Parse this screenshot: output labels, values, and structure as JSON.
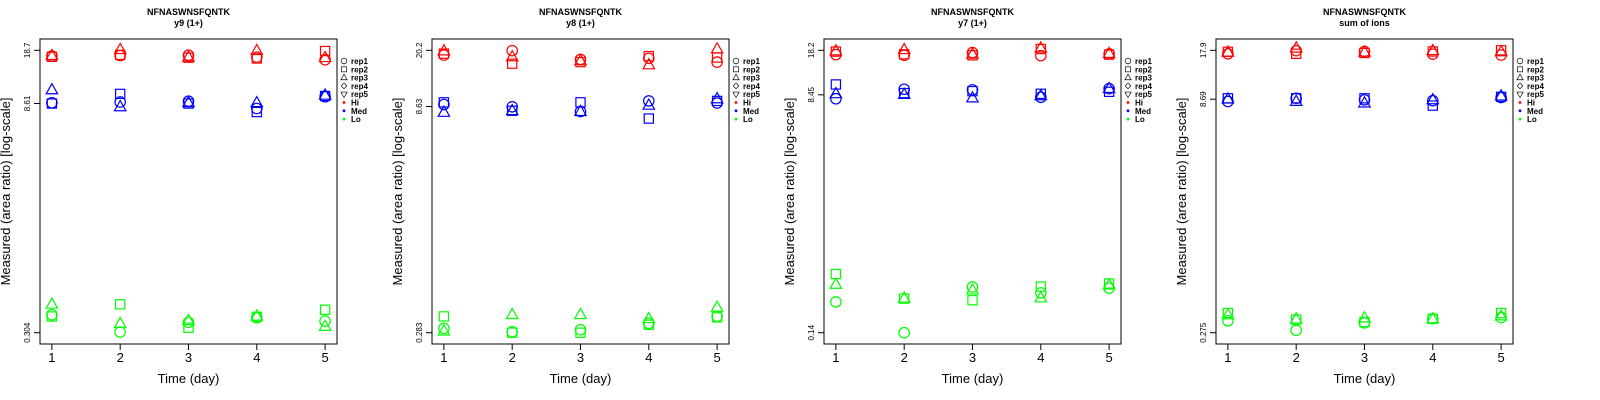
{
  "chart_data": [
    {
      "type": "scatter",
      "title": "NFNASWNSFQNTK",
      "subtitle": "y9 (1+)",
      "xlabel": "Time (day)",
      "ylabel": "Measured (area ratio) [log-scale]",
      "x_ticks": [
        "1",
        "2",
        "3",
        "4",
        "5"
      ],
      "y_tick_labels": [
        "18.7",
        "8.61",
        "0.304"
      ],
      "y_tick_values": [
        18.7,
        8.61,
        0.304
      ],
      "log_scale_y": true,
      "legend": {
        "placement": "right",
        "reps": [
          "rep1",
          "rep2",
          "rep3",
          "rep4",
          "rep5"
        ],
        "levels": [
          "Hi",
          "Med",
          "Lo"
        ]
      },
      "series": [
        {
          "level": "Hi",
          "rep": "rep1",
          "x": [
            1,
            2,
            3,
            4,
            5
          ],
          "y": [
            17.2,
            17.3,
            17.4,
            16.9,
            16.3
          ]
        },
        {
          "level": "Hi",
          "rep": "rep2",
          "x": [
            1,
            2,
            3,
            4,
            5
          ],
          "y": [
            17.0,
            17.5,
            16.8,
            16.6,
            18.5
          ]
        },
        {
          "level": "Hi",
          "rep": "rep3",
          "x": [
            1,
            2,
            3,
            4,
            5
          ],
          "y": [
            17.3,
            18.9,
            16.9,
            18.6,
            16.8
          ]
        },
        {
          "level": "Med",
          "rep": "rep1",
          "x": [
            1,
            2,
            3,
            4,
            5
          ],
          "y": [
            8.7,
            8.8,
            8.9,
            8.0,
            9.5
          ]
        },
        {
          "level": "Med",
          "rep": "rep2",
          "x": [
            1,
            2,
            3,
            4,
            5
          ],
          "y": [
            8.6,
            9.9,
            8.6,
            7.6,
            9.6
          ]
        },
        {
          "level": "Med",
          "rep": "rep3",
          "x": [
            1,
            2,
            3,
            4,
            5
          ],
          "y": [
            10.5,
            8.2,
            8.7,
            8.7,
            9.7
          ]
        },
        {
          "level": "Lo",
          "rep": "rep1",
          "x": [
            1,
            2,
            3,
            4,
            5
          ],
          "y": [
            0.395,
            0.307,
            0.354,
            0.378,
            0.36
          ]
        },
        {
          "level": "Lo",
          "rep": "rep2",
          "x": [
            1,
            2,
            3,
            4,
            5
          ],
          "y": [
            0.385,
            0.46,
            0.327,
            0.383,
            0.425
          ]
        },
        {
          "level": "Lo",
          "rep": "rep3",
          "x": [
            1,
            2,
            3,
            4,
            5
          ],
          "y": [
            0.46,
            0.347,
            0.362,
            0.387,
            0.333
          ]
        }
      ]
    },
    {
      "type": "scatter",
      "title": "NFNASWNSFQNTK",
      "subtitle": "y8 (1+)",
      "xlabel": "Time (day)",
      "ylabel": "Measured (area ratio) [log-scale]",
      "x_ticks": [
        "1",
        "2",
        "3",
        "4",
        "5"
      ],
      "y_tick_labels": [
        "20.2",
        "8.63",
        "0.283"
      ],
      "y_tick_values": [
        20.2,
        8.63,
        0.283
      ],
      "log_scale_y": true,
      "legend": {
        "placement": "right",
        "reps": [
          "rep1",
          "rep2",
          "rep3",
          "rep4",
          "rep5"
        ],
        "levels": [
          "Hi",
          "Med",
          "Lo"
        ]
      },
      "series": [
        {
          "level": "Hi",
          "rep": "rep1",
          "x": [
            1,
            2,
            3,
            4,
            5
          ],
          "y": [
            18.8,
            20.1,
            17.6,
            17.9,
            16.9
          ]
        },
        {
          "level": "Hi",
          "rep": "rep2",
          "x": [
            1,
            2,
            3,
            4,
            5
          ],
          "y": [
            19.2,
            16.5,
            16.9,
            18.5,
            18.1
          ]
        },
        {
          "level": "Hi",
          "rep": "rep3",
          "x": [
            1,
            2,
            3,
            4,
            5
          ],
          "y": [
            20.0,
            18.3,
            17.2,
            16.2,
            20.6
          ]
        },
        {
          "level": "Med",
          "rep": "rep1",
          "x": [
            1,
            2,
            3,
            4,
            5
          ],
          "y": [
            8.9,
            8.6,
            8.0,
            9.4,
            9.1
          ]
        },
        {
          "level": "Med",
          "rep": "rep2",
          "x": [
            1,
            2,
            3,
            4,
            5
          ],
          "y": [
            9.2,
            8.1,
            9.2,
            7.2,
            9.4
          ]
        },
        {
          "level": "Med",
          "rep": "rep3",
          "x": [
            1,
            2,
            3,
            4,
            5
          ],
          "y": [
            7.9,
            8.1,
            8.0,
            8.8,
            9.7
          ]
        },
        {
          "level": "Lo",
          "rep": "rep1",
          "x": [
            1,
            2,
            3,
            4,
            5
          ],
          "y": [
            0.302,
            0.287,
            0.296,
            0.326,
            0.362
          ]
        },
        {
          "level": "Lo",
          "rep": "rep2",
          "x": [
            1,
            2,
            3,
            4,
            5
          ],
          "y": [
            0.362,
            0.283,
            0.283,
            0.319,
            0.357
          ]
        },
        {
          "level": "Lo",
          "rep": "rep3",
          "x": [
            1,
            2,
            3,
            4,
            5
          ],
          "y": [
            0.29,
            0.372,
            0.372,
            0.35,
            0.415
          ]
        }
      ]
    },
    {
      "type": "scatter",
      "title": "NFNASWNSFQNTK",
      "subtitle": "y7 (1+)",
      "xlabel": "Time (day)",
      "ylabel": "Measured (area ratio) [log-scale]",
      "x_ticks": [
        "1",
        "2",
        "3",
        "4",
        "5"
      ],
      "y_tick_labels": [
        "18.2",
        "8.45",
        "0.14"
      ],
      "y_tick_values": [
        18.2,
        8.45,
        0.14
      ],
      "log_scale_y": true,
      "legend": {
        "placement": "right",
        "reps": [
          "rep1",
          "rep2",
          "rep3",
          "rep4",
          "rep5"
        ],
        "levels": [
          "Hi",
          "Med",
          "Lo"
        ]
      },
      "series": [
        {
          "level": "Hi",
          "rep": "rep1",
          "x": [
            1,
            2,
            3,
            4,
            5
          ],
          "y": [
            16.9,
            16.7,
            17.5,
            16.6,
            17.1
          ]
        },
        {
          "level": "Hi",
          "rep": "rep2",
          "x": [
            1,
            2,
            3,
            4,
            5
          ],
          "y": [
            17.8,
            17.0,
            16.7,
            18.6,
            16.9
          ]
        },
        {
          "level": "Hi",
          "rep": "rep3",
          "x": [
            1,
            2,
            3,
            4,
            5
          ],
          "y": [
            18.0,
            18.4,
            17.0,
            18.9,
            17.2
          ]
        },
        {
          "level": "Med",
          "rep": "rep1",
          "x": [
            1,
            2,
            3,
            4,
            5
          ],
          "y": [
            7.9,
            9.3,
            9.2,
            8.1,
            9.4
          ]
        },
        {
          "level": "Med",
          "rep": "rep2",
          "x": [
            1,
            2,
            3,
            4,
            5
          ],
          "y": [
            10.1,
            8.7,
            9.0,
            8.6,
            8.9
          ]
        },
        {
          "level": "Med",
          "rep": "rep3",
          "x": [
            1,
            2,
            3,
            4,
            5
          ],
          "y": [
            8.6,
            8.5,
            8.0,
            8.3,
            9.4
          ]
        },
        {
          "level": "Lo",
          "rep": "rep1",
          "x": [
            1,
            2,
            3,
            4,
            5
          ],
          "y": [
            0.238,
            0.14,
            0.308,
            0.278,
            0.302
          ]
        },
        {
          "level": "Lo",
          "rep": "rep2",
          "x": [
            1,
            2,
            3,
            4,
            5
          ],
          "y": [
            0.385,
            0.252,
            0.245,
            0.31,
            0.327
          ]
        },
        {
          "level": "Lo",
          "rep": "rep3",
          "x": [
            1,
            2,
            3,
            4,
            5
          ],
          "y": [
            0.322,
            0.254,
            0.292,
            0.255,
            0.318
          ]
        }
      ]
    },
    {
      "type": "scatter",
      "title": "NFNASWNSFQNTK",
      "subtitle": "sum of ions",
      "xlabel": "Time (day)",
      "ylabel": "Measured (area ratio) [log-scale]",
      "x_ticks": [
        "1",
        "2",
        "3",
        "4",
        "5"
      ],
      "y_tick_labels": [
        "17.9",
        "8.69",
        "0.275"
      ],
      "y_tick_values": [
        17.9,
        8.69,
        0.275
      ],
      "log_scale_y": true,
      "legend": {
        "placement": "right",
        "reps": [
          "rep1",
          "rep2",
          "rep3",
          "rep4",
          "rep5"
        ],
        "levels": [
          "Hi",
          "Med",
          "Lo"
        ]
      },
      "series": [
        {
          "level": "Hi",
          "rep": "rep1",
          "x": [
            1,
            2,
            3,
            4,
            5
          ],
          "y": [
            17.0,
            17.8,
            17.6,
            16.9,
            16.7
          ]
        },
        {
          "level": "Hi",
          "rep": "rep2",
          "x": [
            1,
            2,
            3,
            4,
            5
          ],
          "y": [
            17.5,
            17.0,
            17.2,
            17.6,
            17.9
          ]
        },
        {
          "level": "Hi",
          "rep": "rep3",
          "x": [
            1,
            2,
            3,
            4,
            5
          ],
          "y": [
            17.4,
            18.5,
            17.4,
            17.8,
            17.5
          ]
        },
        {
          "level": "Med",
          "rep": "rep1",
          "x": [
            1,
            2,
            3,
            4,
            5
          ],
          "y": [
            8.4,
            8.8,
            8.6,
            8.5,
            8.9
          ]
        },
        {
          "level": "Med",
          "rep": "rep2",
          "x": [
            1,
            2,
            3,
            4,
            5
          ],
          "y": [
            8.8,
            8.8,
            8.8,
            7.9,
            9.0
          ]
        },
        {
          "level": "Med",
          "rep": "rep3",
          "x": [
            1,
            2,
            3,
            4,
            5
          ],
          "y": [
            8.7,
            8.4,
            8.2,
            8.6,
            9.1
          ]
        },
        {
          "level": "Lo",
          "rep": "rep1",
          "x": [
            1,
            2,
            3,
            4,
            5
          ],
          "y": [
            0.328,
            0.285,
            0.318,
            0.338,
            0.344
          ]
        },
        {
          "level": "Lo",
          "rep": "rep2",
          "x": [
            1,
            2,
            3,
            4,
            5
          ],
          "y": [
            0.368,
            0.334,
            0.322,
            0.338,
            0.368
          ]
        },
        {
          "level": "Lo",
          "rep": "rep3",
          "x": [
            1,
            2,
            3,
            4,
            5
          ],
          "y": [
            0.358,
            0.336,
            0.342,
            0.337,
            0.352
          ]
        }
      ]
    }
  ],
  "colors": {
    "Hi": "#ff0000",
    "Med": "#0000ff",
    "Lo": "#00ff00",
    "axis": "#000000"
  }
}
